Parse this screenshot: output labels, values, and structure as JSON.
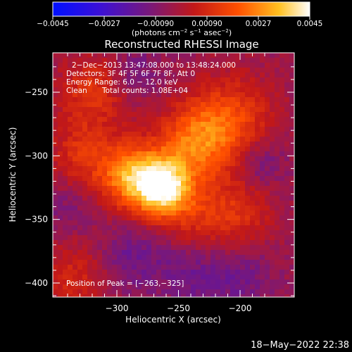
{
  "chart_data": {
    "type": "heatmap",
    "title": "Reconstructed RHESSI Image",
    "xlabel": "Heliocentric X (arcsec)",
    "ylabel": "Heliocentric Y (arcsec)",
    "xlim": [
      -353,
      -240
    ],
    "ylim": [
      -412,
      -300
    ],
    "x_ticks": [
      -300,
      -250,
      -200
    ],
    "y_ticks": [
      -250,
      -300,
      -350,
      -400
    ],
    "x_tick_labels": [
      "−300",
      "−250",
      "−200"
    ],
    "y_tick_labels": [
      "−250",
      "−300",
      "−350",
      "−400"
    ],
    "colorbar": {
      "min": -0.0045,
      "max": 0.0045,
      "tick_values": [
        -0.0045,
        -0.0027,
        -0.0009,
        0.0009,
        0.0027,
        0.0045
      ],
      "tick_labels": [
        "−0.0045",
        "−0.0027",
        "−0.00090",
        "0.00090",
        "0.0027",
        "0.0045"
      ],
      "unit_label_main": "(photons cm",
      "unit_label_exp1": "−2",
      "unit_label_mid1": " s",
      "unit_label_exp2": "−1",
      "unit_label_mid2": " asec",
      "unit_label_exp3": "−2",
      "unit_label_end": ")"
    },
    "annotations": {
      "time_range": "2−Dec−2013 13:47:08.000 to 13:48:24.000",
      "detectors": "Detectors: 3F 4F 5F 6F 7F 8F, Att 0",
      "energy": "Energy Range: 6.0 − 12.0 keV",
      "method": "Clean",
      "counts": "Total counts: 1.08E+04",
      "peak": "Position of Peak = [−263,−325]"
    },
    "peak_position": [
      -263,
      -325
    ],
    "source_blobs": [
      {
        "x": -263,
        "y": -325,
        "amp": 0.0045,
        "sigma": 16
      },
      {
        "x": -290,
        "y": -315,
        "amp": 0.0032,
        "sigma": 18
      },
      {
        "x": -236,
        "y": -290,
        "amp": 0.0026,
        "sigma": 22
      },
      {
        "x": -205,
        "y": -270,
        "amp": 0.0018,
        "sigma": 24
      },
      {
        "x": -320,
        "y": -250,
        "amp": 0.0016,
        "sigma": 20
      },
      {
        "x": -330,
        "y": -298,
        "amp": 0.0014,
        "sigma": 18
      },
      {
        "x": -235,
        "y": -350,
        "amp": 0.0012,
        "sigma": 20
      },
      {
        "x": -200,
        "y": -345,
        "amp": 0.0013,
        "sigma": 20
      },
      {
        "x": -335,
        "y": -395,
        "amp": 0.0012,
        "sigma": 22
      },
      {
        "x": -290,
        "y": -380,
        "amp": -0.001,
        "sigma": 18
      },
      {
        "x": -240,
        "y": -390,
        "amp": -0.0009,
        "sigma": 20
      },
      {
        "x": -285,
        "y": -235,
        "amp": -0.0008,
        "sigma": 14
      },
      {
        "x": -185,
        "y": -305,
        "amp": -0.001,
        "sigma": 14
      },
      {
        "x": -200,
        "y": -395,
        "amp": -0.0008,
        "sigma": 18
      },
      {
        "x": -340,
        "y": -345,
        "amp": -0.0006,
        "sigma": 14
      }
    ]
  },
  "footer": {
    "timestamp": "18−May−2022 22:38"
  }
}
